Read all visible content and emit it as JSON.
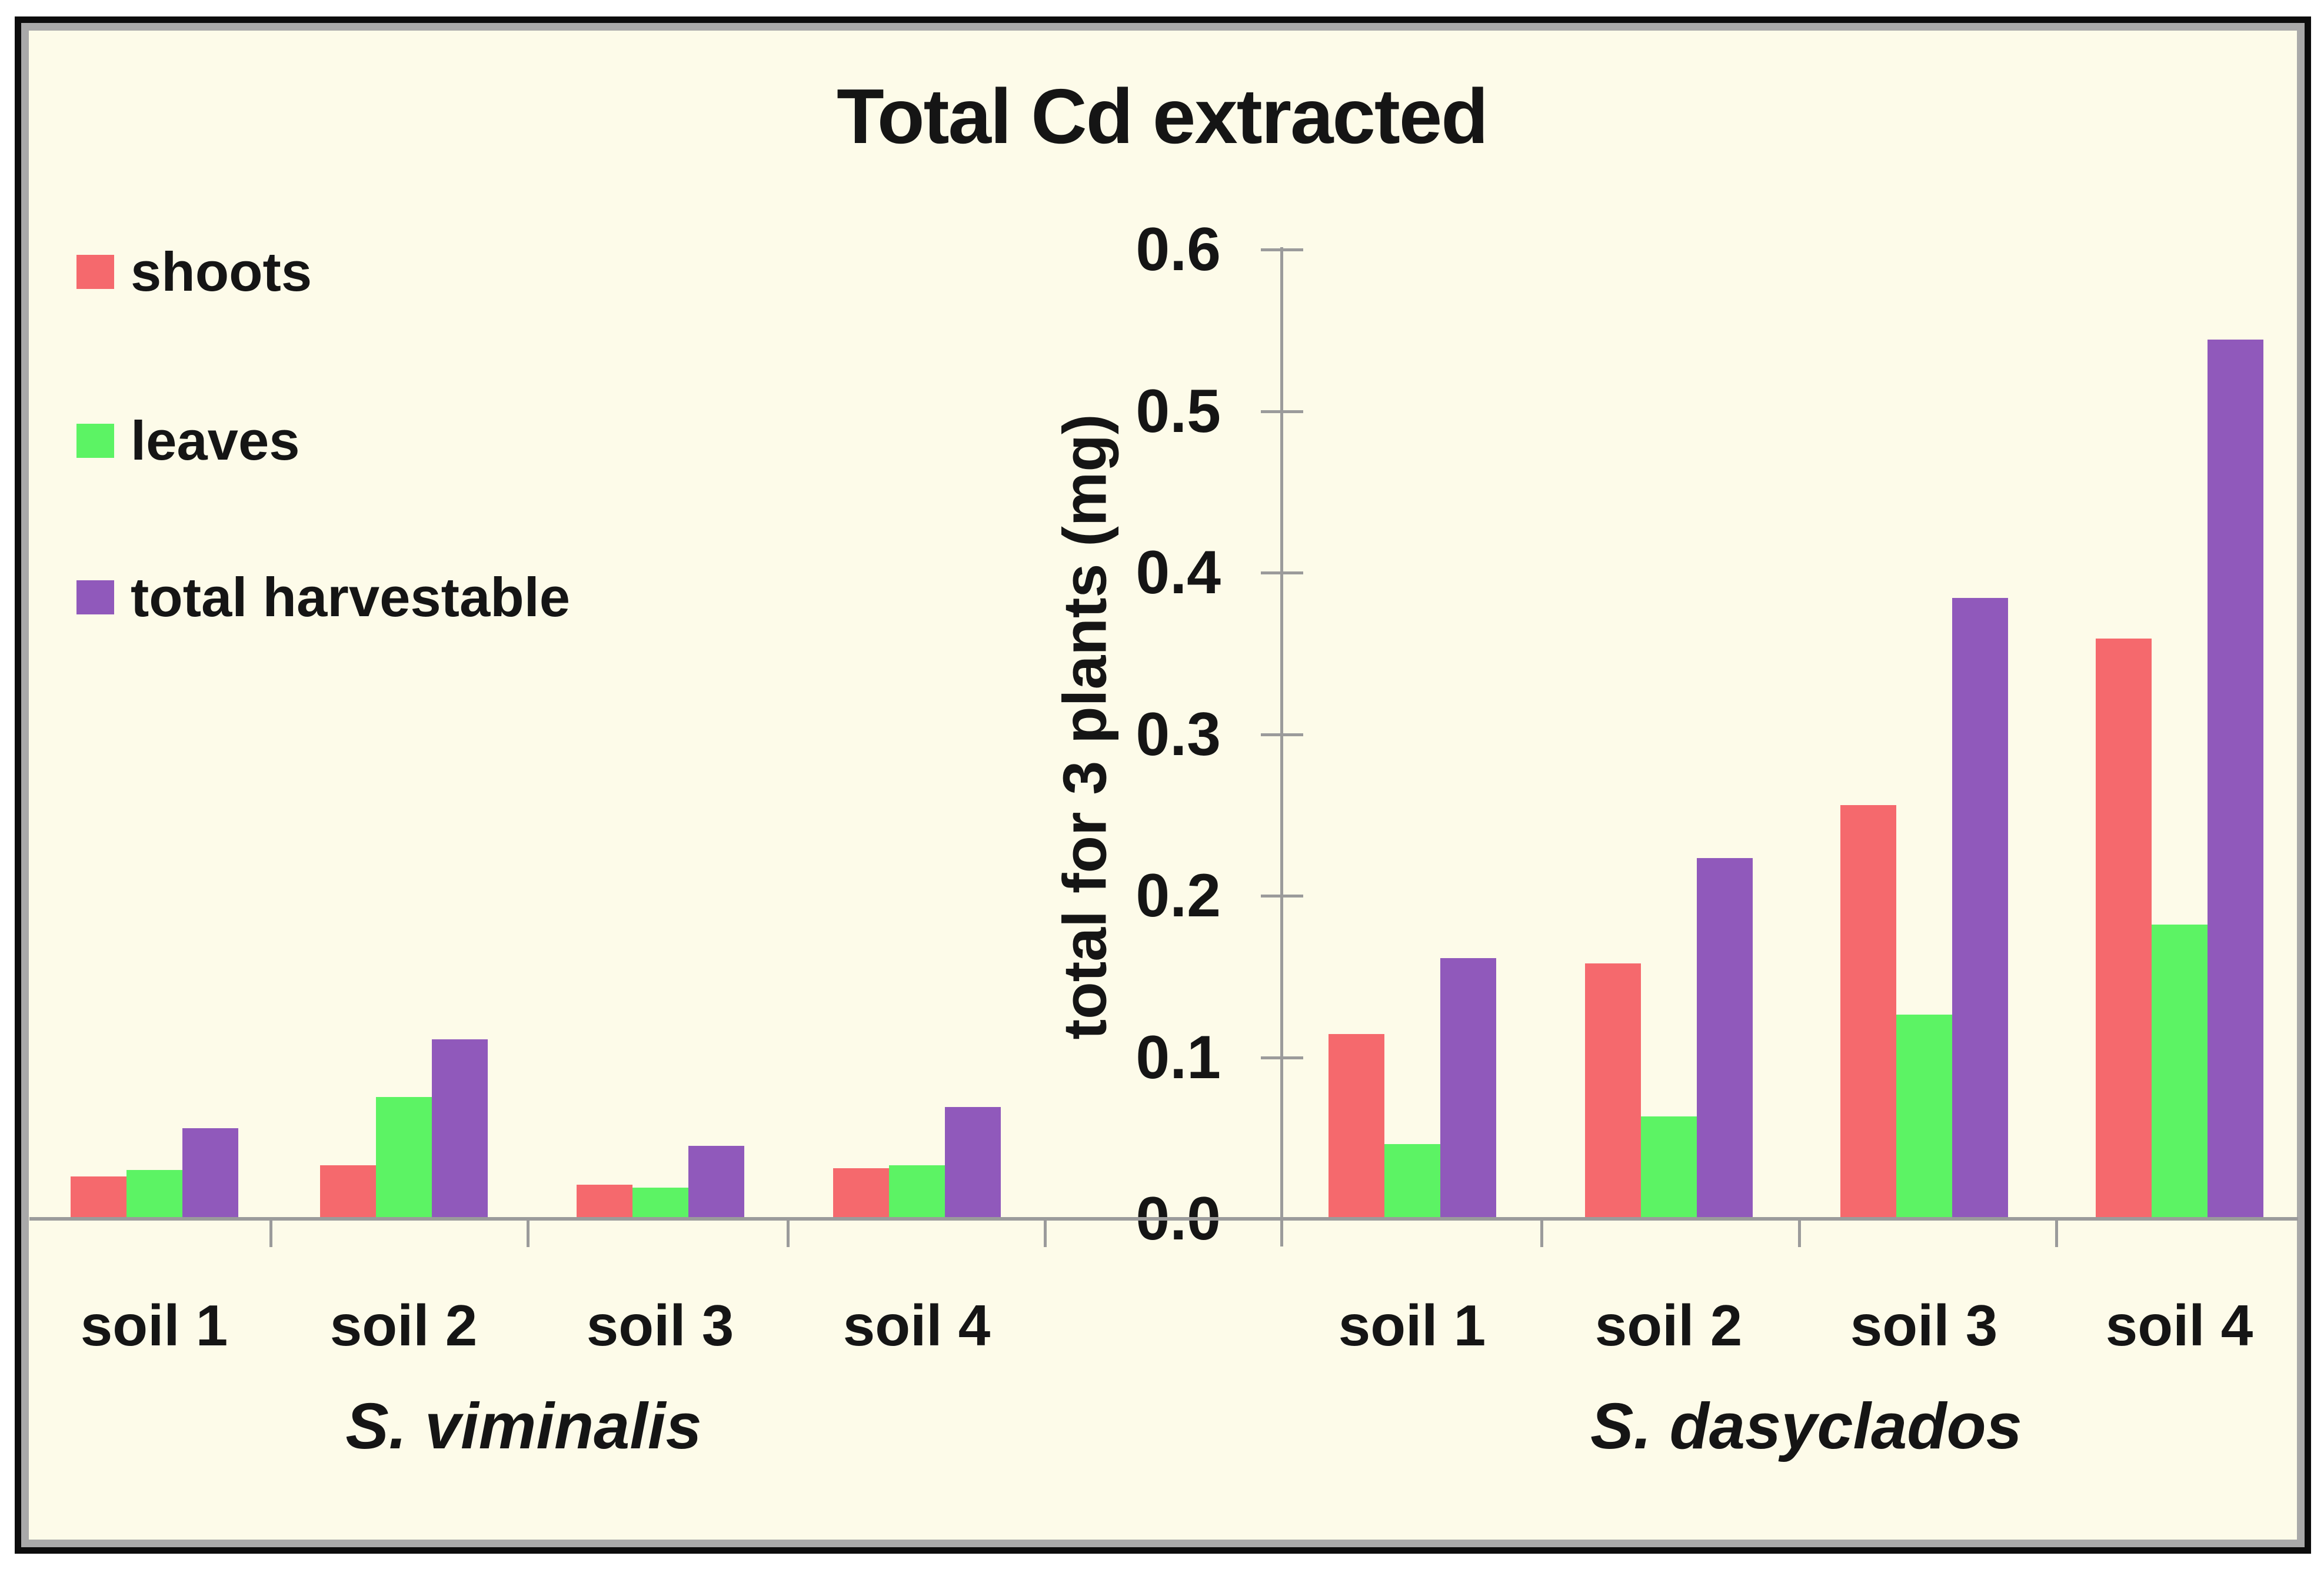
{
  "title": "Total Cd extracted",
  "legend": [
    {
      "label": "shoots",
      "color": "#f5696d"
    },
    {
      "label": "leaves",
      "color": "#5cf364"
    },
    {
      "label": "total harvestable",
      "color": "#9059bb"
    }
  ],
  "colors": {
    "background": "#FDFBE9",
    "frame_outer": "#0c0c0c",
    "frame_inner": "#a9a9a9",
    "axis": "#9b9b9b",
    "shoots": "#f5696d",
    "leaves": "#5cf364",
    "total_harvestable": "#9059bb"
  },
  "chart_data": {
    "type": "bar",
    "title": "Total Cd extracted",
    "xlabel": "",
    "ylabel": "total  for 3 plants (mg)",
    "ylim": [
      0,
      0.6
    ],
    "yticks": [
      "0.0",
      "0.1",
      "0.2",
      "0.3",
      "0.4",
      "0.5",
      "0.6"
    ],
    "grid": false,
    "legend_position": "upper-left",
    "panels": [
      {
        "species": "S. viminalis",
        "categories": [
          "soil 1",
          "soil 2",
          "soil 3",
          "soil 4"
        ],
        "series": [
          {
            "name": "shoots",
            "color": "#f5696d",
            "values": [
              0.027,
              0.034,
              0.022,
              0.032
            ]
          },
          {
            "name": "leaves",
            "color": "#5cf364",
            "values": [
              0.031,
              0.076,
              0.02,
              0.034
            ]
          },
          {
            "name": "total harvestable",
            "color": "#9059bb",
            "values": [
              0.057,
              0.112,
              0.046,
              0.07
            ]
          }
        ]
      },
      {
        "species": "S. dasyclados",
        "categories": [
          "soil 1",
          "soil 2",
          "soil 3",
          "soil 4"
        ],
        "series": [
          {
            "name": "shoots",
            "color": "#f5696d",
            "values": [
              0.115,
              0.159,
              0.257,
              0.36
            ]
          },
          {
            "name": "leaves",
            "color": "#5cf364",
            "values": [
              0.047,
              0.064,
              0.127,
              0.183
            ]
          },
          {
            "name": "total harvestable",
            "color": "#9059bb",
            "values": [
              0.162,
              0.224,
              0.385,
              0.545
            ]
          }
        ]
      }
    ]
  }
}
